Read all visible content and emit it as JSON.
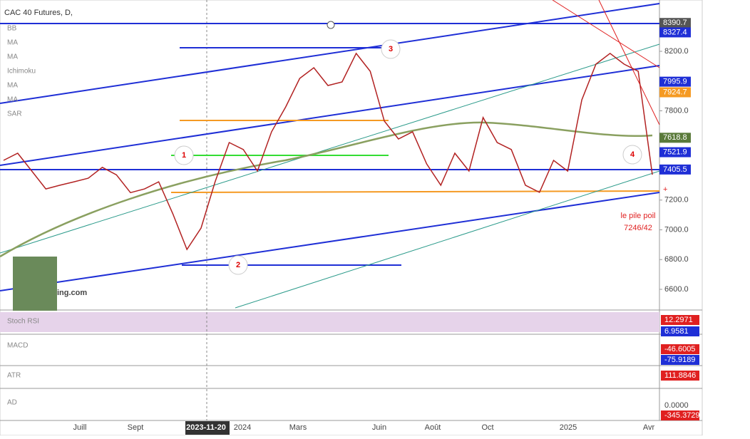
{
  "chart_data": {
    "type": "line",
    "title": "CAC 40 Futures, D,",
    "color": "#b22222",
    "values": [
      7467,
      7515,
      7395,
      7275,
      7300,
      7323,
      7347,
      7420,
      7370,
      7250,
      7275,
      7323,
      7108,
      6868,
      7012,
      7323,
      7587,
      7540,
      7395,
      7659,
      7826,
      8018,
      8090,
      7970,
      7994,
      8186,
      8066,
      7731,
      7611,
      7659,
      7443,
      7300,
      7515,
      7395,
      7755,
      7587,
      7540,
      7300,
      7252,
      7467,
      7395,
      7874,
      8114,
      8186,
      8114,
      8066,
      7371
    ],
    "ylim": [
      6461,
      8545
    ],
    "yticks": [
      {
        "value": 6600,
        "label": "6600.0"
      },
      {
        "value": 6800,
        "label": "6800.0"
      },
      {
        "value": 7000,
        "label": "7000.0"
      },
      {
        "value": 7200,
        "label": "7200.0"
      },
      {
        "value": 7800,
        "label": "7800.0"
      },
      {
        "value": 8200,
        "label": "8200.0"
      }
    ],
    "x_labels": [
      "Juill",
      "Sept",
      "2023-11-20",
      "2024",
      "Mars",
      "Juin",
      "Août",
      "Oct",
      "2025",
      "Avr"
    ]
  },
  "ui": {
    "indicators": [
      "BB",
      "MA",
      "MA",
      "Ichimoku",
      "MA",
      "MA",
      "SAR"
    ],
    "price_tags": [
      {
        "value": 8390.7,
        "label": "8390.7",
        "color": "#555"
      },
      {
        "value": 8327.4,
        "label": "8327.4",
        "color": "#1f2fd6"
      },
      {
        "value": 7995.9,
        "label": "7995.9",
        "color": "#1f2fd6"
      },
      {
        "value": 7924.7,
        "label": "7924.7",
        "color": "#f59a23"
      },
      {
        "value": 7618.8,
        "label": "7618.8",
        "color": "#5a7a3a"
      },
      {
        "value": 7521.9,
        "label": "7521.9",
        "color": "#1f2fd6"
      },
      {
        "value": 7405.5,
        "label": "7405.5",
        "color": "#1f2fd6"
      }
    ],
    "annotations": [
      "1",
      "2",
      "3",
      "4"
    ],
    "note": [
      "le pile poil",
      "7246/42"
    ],
    "watermark": "ing.com",
    "panes": [
      {
        "name": "Stoch RSI",
        "tags": [
          "12.2971",
          "6.9581"
        ]
      },
      {
        "name": "MACD",
        "tags": [
          "-46.6005",
          "-75.9189"
        ]
      },
      {
        "name": "ATR",
        "tags": [
          "111.8846"
        ]
      },
      {
        "name": "AD",
        "tags": [
          "0.0000",
          "-345.3729"
        ]
      }
    ]
  }
}
